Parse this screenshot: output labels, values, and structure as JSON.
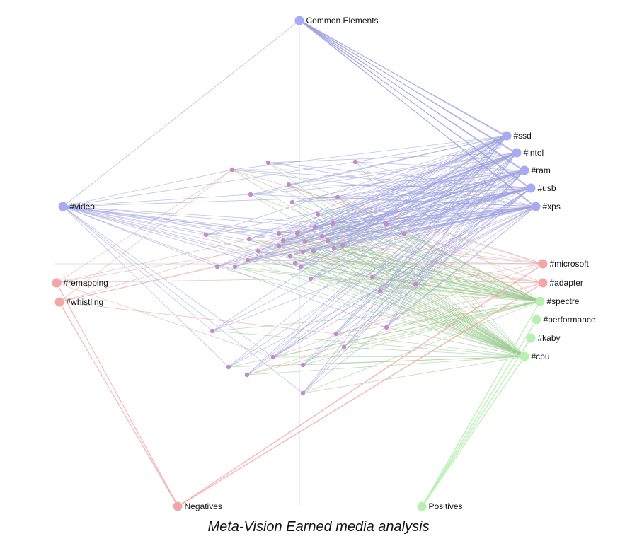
{
  "caption": "Meta-Vision Earned media analysis",
  "colors": {
    "common": "#a8aaf2",
    "negative": "#f4a6a6",
    "positive": "#b7f0b1",
    "document": "#c58ac9",
    "link_common": "#9d9fdd",
    "link_negative": "#e8a3a3",
    "link_positive": "#9ccb92",
    "axis": "#dcdcdc"
  },
  "hubs": [
    {
      "id": "common",
      "label": "Common Elements",
      "group": "common"
    },
    {
      "id": "neg",
      "label": "Negatives",
      "group": "negative"
    },
    {
      "id": "pos",
      "label": "Positives",
      "group": "positive"
    }
  ],
  "terms": [
    {
      "id": "video",
      "label": "#video",
      "group": "common"
    },
    {
      "id": "ssd",
      "label": "#ssd",
      "group": "common"
    },
    {
      "id": "intel",
      "label": "#intel",
      "group": "common"
    },
    {
      "id": "ram",
      "label": "#ram",
      "group": "common"
    },
    {
      "id": "usb",
      "label": "#usb",
      "group": "common"
    },
    {
      "id": "xps",
      "label": "#xps",
      "group": "common"
    },
    {
      "id": "remapping",
      "label": "#remapping",
      "group": "negative"
    },
    {
      "id": "whistling",
      "label": "#whistling",
      "group": "negative"
    },
    {
      "id": "microsoft",
      "label": "#microsoft",
      "group": "negative"
    },
    {
      "id": "adapter",
      "label": "#adapter",
      "group": "negative"
    },
    {
      "id": "spectre",
      "label": "#spectre",
      "group": "positive"
    },
    {
      "id": "performance",
      "label": "#performance",
      "group": "positive"
    },
    {
      "id": "kaby",
      "label": "#kaby",
      "group": "positive"
    },
    {
      "id": "cpu",
      "label": "#cpu",
      "group": "positive"
    }
  ]
}
